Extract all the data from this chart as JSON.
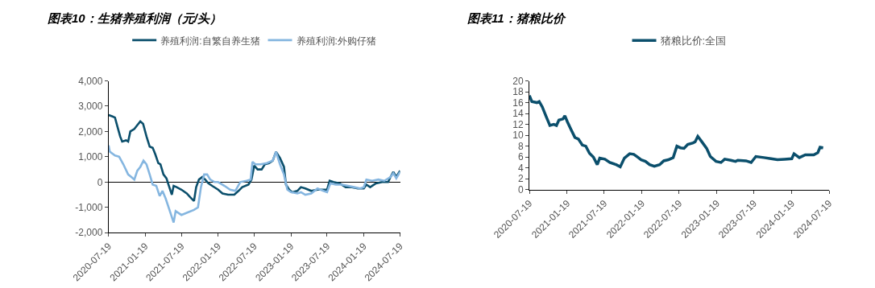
{
  "chart_data": [
    {
      "type": "line",
      "title": "图表10：生猪养殖利润（元/头）",
      "legend": "top",
      "xlim": [
        "2020-07-19",
        "2024-07-19"
      ],
      "xticks": [
        "2020-07-19",
        "2021-01-19",
        "2021-07-19",
        "2022-01-19",
        "2022-07-19",
        "2023-01-19",
        "2023-07-19",
        "2024-01-19",
        "2024-07-19"
      ],
      "ylim": [
        -2000,
        4000
      ],
      "yticks": [
        {
          "value": -2000,
          "label": "-2,000"
        },
        {
          "value": -1000,
          "label": "-1,000"
        },
        0,
        {
          "value": 1000,
          "label": "1,000"
        },
        {
          "value": 2000,
          "label": "2,000"
        },
        {
          "value": 3000,
          "label": "3,000"
        },
        {
          "value": 4000,
          "label": "4,000"
        }
      ],
      "series": [
        {
          "name": "养殖利润:自繁自养生猪",
          "color": "#0b4f6c",
          "x": [
            "2020-07-19",
            "2020-08-05",
            "2020-08-20",
            "2020-09-01",
            "2020-09-15",
            "2020-09-25",
            "2020-10-15",
            "2020-10-25",
            "2020-11-05",
            "2020-11-25",
            "2020-12-10",
            "2020-12-25",
            "2021-01-08",
            "2021-01-25",
            "2021-02-10",
            "2021-02-25",
            "2021-03-10",
            "2021-03-25",
            "2021-04-05",
            "2021-04-20",
            "2021-05-05",
            "2021-05-15",
            "2021-06-01",
            "2021-06-10",
            "2021-06-25",
            "2021-07-19",
            "2021-08-15",
            "2021-09-01",
            "2021-09-20",
            "2021-10-01",
            "2021-10-15",
            "2021-11-01",
            "2021-11-15",
            "2021-12-01",
            "2021-12-20",
            "2022-01-19",
            "2022-02-10",
            "2022-03-10",
            "2022-04-10",
            "2022-05-01",
            "2022-05-20",
            "2022-06-20",
            "2022-07-05",
            "2022-07-19",
            "2022-08-05",
            "2022-08-25",
            "2022-09-10",
            "2022-10-01",
            "2022-10-20",
            "2022-11-05",
            "2022-11-25",
            "2022-12-15",
            "2022-12-25",
            "2023-01-10",
            "2023-01-25",
            "2023-02-20",
            "2023-03-10",
            "2023-04-01",
            "2023-05-01",
            "2023-06-01",
            "2023-07-01",
            "2023-07-19",
            "2023-08-01",
            "2023-08-20",
            "2023-09-20",
            "2023-10-20",
            "2023-11-20",
            "2023-12-20",
            "2024-01-19",
            "2024-02-01",
            "2024-02-20",
            "2024-03-20",
            "2024-04-20",
            "2024-05-20",
            "2024-06-01",
            "2024-06-15",
            "2024-06-30",
            "2024-07-19"
          ],
          "values": [
            2650,
            2600,
            2550,
            2200,
            1800,
            1600,
            1650,
            1600,
            2000,
            2100,
            2250,
            2400,
            2300,
            1800,
            1400,
            1350,
            1100,
            750,
            700,
            300,
            150,
            -100,
            -500,
            -150,
            -200,
            -300,
            -450,
            -600,
            -750,
            -200,
            100,
            200,
            100,
            -50,
            -150,
            -300,
            -450,
            -500,
            -500,
            -350,
            -200,
            -100,
            100,
            650,
            500,
            500,
            700,
            750,
            850,
            1200,
            950,
            600,
            -100,
            -300,
            -400,
            -350,
            -200,
            -250,
            -350,
            -300,
            -300,
            -300,
            50,
            0,
            -50,
            -200,
            -200,
            -250,
            -250,
            -100,
            -200,
            -50,
            0,
            0,
            200,
            400,
            200,
            450
          ]
        },
        {
          "name": "养殖利润:外购仔猪",
          "color": "#85b6e0",
          "x": [
            "2020-07-19",
            "2020-07-25",
            "2020-08-20",
            "2020-09-10",
            "2020-10-01",
            "2020-10-25",
            "2020-11-10",
            "2020-11-25",
            "2020-12-10",
            "2020-12-25",
            "2021-01-10",
            "2021-01-25",
            "2021-02-10",
            "2021-02-25",
            "2021-03-15",
            "2021-04-01",
            "2021-04-15",
            "2021-05-01",
            "2021-05-20",
            "2021-06-10",
            "2021-06-20",
            "2021-07-19",
            "2021-08-20",
            "2021-09-20",
            "2021-10-10",
            "2021-10-25",
            "2021-11-10",
            "2021-11-25",
            "2021-12-10",
            "2022-01-01",
            "2022-01-19",
            "2022-02-20",
            "2022-03-20",
            "2022-04-15",
            "2022-05-10",
            "2022-06-10",
            "2022-07-01",
            "2022-07-10",
            "2022-07-25",
            "2022-08-20",
            "2022-09-20",
            "2022-10-20",
            "2022-11-05",
            "2022-11-25",
            "2022-12-15",
            "2023-01-01",
            "2023-01-19",
            "2023-02-20",
            "2023-03-10",
            "2023-04-01",
            "2023-05-01",
            "2023-06-01",
            "2023-07-01",
            "2023-07-19",
            "2023-08-05",
            "2023-09-01",
            "2023-10-01",
            "2023-11-01",
            "2023-12-01",
            "2024-01-01",
            "2024-01-19",
            "2024-02-01",
            "2024-03-01",
            "2024-04-01",
            "2024-05-01",
            "2024-06-01",
            "2024-06-15",
            "2024-06-30",
            "2024-07-19"
          ],
          "values": [
            1450,
            1200,
            1050,
            1000,
            700,
            300,
            200,
            100,
            450,
            600,
            850,
            700,
            300,
            -100,
            -150,
            -550,
            -350,
            -650,
            -1100,
            -1600,
            -1150,
            -1300,
            -1200,
            -1100,
            -1000,
            -200,
            300,
            300,
            100,
            0,
            0,
            -150,
            -300,
            -350,
            0,
            50,
            100,
            800,
            700,
            700,
            750,
            850,
            1200,
            700,
            300,
            -300,
            -400,
            -450,
            -400,
            -500,
            -450,
            -250,
            -350,
            -400,
            -50,
            -100,
            -100,
            -150,
            -200,
            -250,
            -200,
            100,
            50,
            100,
            50,
            200,
            350,
            150,
            400
          ]
        }
      ]
    },
    {
      "type": "line",
      "title": "图表11：猪粮比价",
      "legend": "top",
      "xlim": [
        "2020-07-19",
        "2024-07-19"
      ],
      "xticks": [
        "2020-07-19",
        "2021-01-19",
        "2021-07-19",
        "2022-01-19",
        "2022-07-19",
        "2023-01-19",
        "2023-07-19",
        "2024-01-19",
        "2024-07-19"
      ],
      "ylim": [
        0,
        20
      ],
      "yticks": [
        0,
        2,
        4,
        6,
        8,
        10,
        12,
        14,
        16,
        18,
        20
      ],
      "series": [
        {
          "name": "猪粮比价:全国",
          "color": "#0b4f6c",
          "x": [
            "2020-07-19",
            "2020-07-31",
            "2020-08-25",
            "2020-09-05",
            "2020-09-20",
            "2020-10-08",
            "2020-10-27",
            "2020-11-15",
            "2020-11-28",
            "2020-12-10",
            "2020-12-30",
            "2021-01-08",
            "2021-01-20",
            "2021-02-08",
            "2021-02-26",
            "2021-03-15",
            "2021-04-03",
            "2021-04-20",
            "2021-05-08",
            "2021-05-27",
            "2021-06-15",
            "2021-06-27",
            "2021-07-22",
            "2021-08-15",
            "2021-09-15",
            "2021-10-05",
            "2021-10-25",
            "2021-11-20",
            "2021-12-10",
            "2021-12-28",
            "2022-01-15",
            "2022-02-05",
            "2022-02-25",
            "2022-03-20",
            "2022-04-15",
            "2022-05-05",
            "2022-05-28",
            "2022-06-20",
            "2022-07-08",
            "2022-07-25",
            "2022-08-12",
            "2022-08-30",
            "2022-09-25",
            "2022-10-05",
            "2022-10-18",
            "2022-11-05",
            "2022-11-30",
            "2022-12-18",
            "2023-01-15",
            "2023-02-08",
            "2023-02-26",
            "2023-03-28",
            "2023-04-20",
            "2023-05-01",
            "2023-06-10",
            "2023-07-05",
            "2023-07-28",
            "2023-09-05",
            "2023-10-10",
            "2023-11-10",
            "2023-12-15",
            "2024-01-19",
            "2024-01-30",
            "2024-02-25",
            "2024-03-25",
            "2024-05-05",
            "2024-05-25",
            "2024-06-05",
            "2024-06-20"
          ],
          "values": [
            17.3,
            16.2,
            16.0,
            16.2,
            15.2,
            13.5,
            11.8,
            12.0,
            11.8,
            12.8,
            13.0,
            13.6,
            12.5,
            11.0,
            9.6,
            9.3,
            8.2,
            8.0,
            6.7,
            6.0,
            4.6,
            5.8,
            5.6,
            5.0,
            4.6,
            4.2,
            5.8,
            6.6,
            6.5,
            6.0,
            5.5,
            5.2,
            4.6,
            4.3,
            4.6,
            5.3,
            5.5,
            5.9,
            8.0,
            7.7,
            7.6,
            8.3,
            8.6,
            8.8,
            9.8,
            8.9,
            7.6,
            6.1,
            5.2,
            5.0,
            5.6,
            5.4,
            5.2,
            5.4,
            5.3,
            5.0,
            6.1,
            5.9,
            5.7,
            5.5,
            5.6,
            5.7,
            6.6,
            5.9,
            6.4,
            6.4,
            6.8,
            7.8,
            7.7
          ]
        }
      ]
    }
  ]
}
